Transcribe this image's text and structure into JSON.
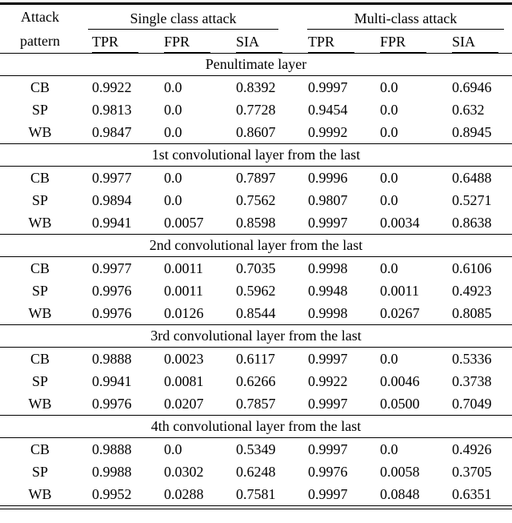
{
  "table": {
    "col1_header": [
      "Attack",
      "pattern"
    ],
    "group_headers": [
      "Single class attack",
      "Multi-class attack"
    ],
    "sub_headers": [
      "TPR",
      "FPR",
      "SIA",
      "TPR",
      "FPR",
      "SIA"
    ],
    "sections": [
      {
        "title": "Penultimate layer",
        "rows": [
          {
            "pattern": "CB",
            "values": [
              "0.9922",
              "0.0",
              "0.8392",
              "0.9997",
              "0.0",
              "0.6946"
            ]
          },
          {
            "pattern": "SP",
            "values": [
              "0.9813",
              "0.0",
              "0.7728",
              "0.9454",
              "0.0",
              "0.632"
            ]
          },
          {
            "pattern": "WB",
            "values": [
              "0.9847",
              "0.0",
              "0.8607",
              "0.9992",
              "0.0",
              "0.8945"
            ]
          }
        ]
      },
      {
        "title": "1st convolutional layer from the last",
        "rows": [
          {
            "pattern": "CB",
            "values": [
              "0.9977",
              "0.0",
              "0.7897",
              "0.9996",
              "0.0",
              "0.6488"
            ]
          },
          {
            "pattern": "SP",
            "values": [
              "0.9894",
              "0.0",
              "0.7562",
              "0.9807",
              "0.0",
              "0.5271"
            ]
          },
          {
            "pattern": "WB",
            "values": [
              "0.9941",
              "0.0057",
              "0.8598",
              "0.9997",
              "0.0034",
              "0.8638"
            ]
          }
        ]
      },
      {
        "title": "2nd convolutional layer from the last",
        "rows": [
          {
            "pattern": "CB",
            "values": [
              "0.9977",
              "0.0011",
              "0.7035",
              "0.9998",
              "0.0",
              "0.6106"
            ]
          },
          {
            "pattern": "SP",
            "values": [
              "0.9976",
              "0.0011",
              "0.5962",
              "0.9948",
              "0.0011",
              "0.4923"
            ]
          },
          {
            "pattern": "WB",
            "values": [
              "0.9976",
              "0.0126",
              "0.8544",
              "0.9998",
              "0.0267",
              "0.8085"
            ]
          }
        ]
      },
      {
        "title": "3rd convolutional layer from the last",
        "rows": [
          {
            "pattern": "CB",
            "values": [
              "0.9888",
              "0.0023",
              "0.6117",
              "0.9997",
              "0.0",
              "0.5336"
            ]
          },
          {
            "pattern": "SP",
            "values": [
              "0.9941",
              "0.0081",
              "0.6266",
              "0.9922",
              "0.0046",
              "0.3738"
            ]
          },
          {
            "pattern": "WB",
            "values": [
              "0.9976",
              "0.0207",
              "0.7857",
              "0.9997",
              "0.0500",
              "0.7049"
            ]
          }
        ]
      },
      {
        "title": "4th convolutional layer from the last",
        "rows": [
          {
            "pattern": "CB",
            "values": [
              "0.9888",
              "0.0",
              "0.5349",
              "0.9997",
              "0.0",
              "0.4926"
            ]
          },
          {
            "pattern": "SP",
            "values": [
              "0.9988",
              "0.0302",
              "0.6248",
              "0.9976",
              "0.0058",
              "0.3705"
            ]
          },
          {
            "pattern": "WB",
            "values": [
              "0.9952",
              "0.0288",
              "0.7581",
              "0.9997",
              "0.0848",
              "0.6351"
            ]
          }
        ]
      }
    ]
  }
}
